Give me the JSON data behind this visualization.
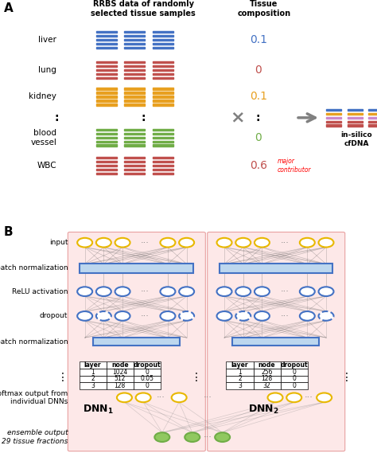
{
  "panel_A_label": "A",
  "panel_B_label": "B",
  "title_rrbs": "RRBS data of randomly\nselected tissue samples",
  "title_tissue": "Tissue\ncomposition",
  "tissues": [
    "liver",
    "lung",
    "kidney",
    "blood\nvessel",
    "WBC"
  ],
  "tissue_colors": [
    "#4472C4",
    "#C0504D",
    "#E8A020",
    "#70AD47",
    "#C0504D"
  ],
  "tissue_values": [
    "0.1",
    "0",
    "0.1",
    "0",
    "0.6"
  ],
  "tissue_value_colors": [
    "#4472C4",
    "#C0504D",
    "#E8A020",
    "#70AD47",
    "#C0504D"
  ],
  "major_contributor_text": "major\ncontributor",
  "insilico_label": "in-silico\ncfDNA",
  "insilico_colors": [
    "#4472C4",
    "#E8A020",
    "#CC88CC",
    "#C0504D",
    "#C0504D"
  ],
  "bg_color_B": "#FDE8E8",
  "node_color_yellow": "#E8B800",
  "node_color_blue": "#4472C4",
  "node_color_green": "#70AD47",
  "node_fill_green": "#90C860",
  "rect_color_blue": "#BDD7EE",
  "rect_edge_blue": "#4472C4",
  "table1_data": [
    [
      "layer",
      "node",
      "dropout"
    ],
    [
      "1",
      "1024",
      "0"
    ],
    [
      "2",
      "512",
      "0.05"
    ],
    [
      "3",
      "128",
      "0"
    ]
  ],
  "table2_data": [
    [
      "layer",
      "node",
      "dropout"
    ],
    [
      "1",
      "256",
      "0"
    ],
    [
      "2",
      "128",
      "0"
    ],
    [
      "3",
      "32",
      "0"
    ]
  ]
}
